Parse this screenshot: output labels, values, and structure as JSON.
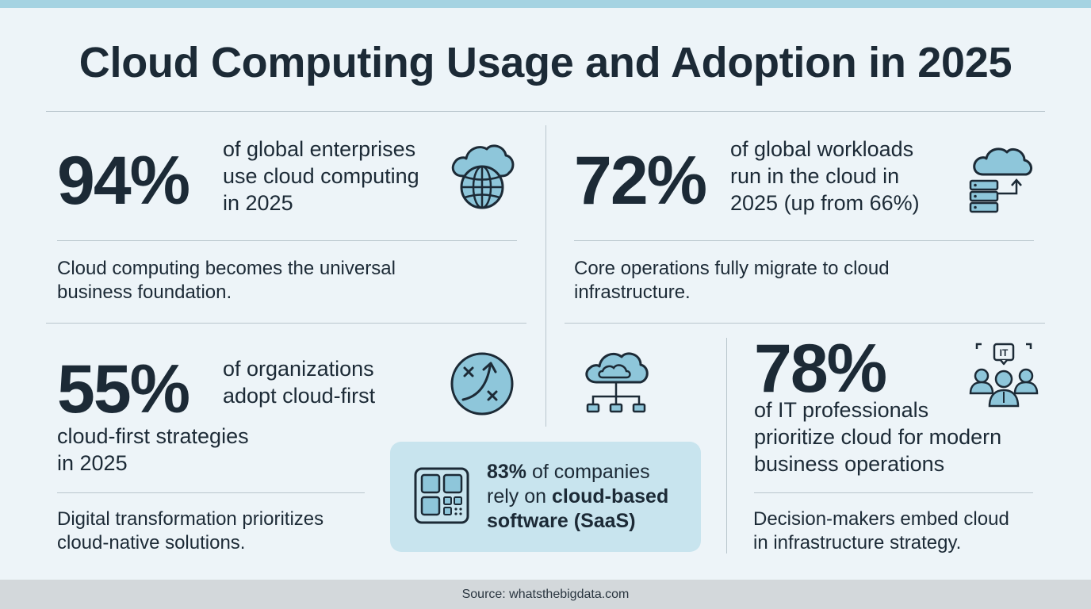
{
  "title": "Cloud Computing Usage and Adoption in 2025",
  "stats": {
    "enterprises": {
      "value": "94%",
      "text_lines": [
        "of global enterprises",
        "use cloud computing",
        "in 2025"
      ],
      "note_lines": [
        "Cloud computing becomes the universal",
        "business foundation."
      ],
      "icon": "cloud-globe-icon"
    },
    "workloads": {
      "value": "72%",
      "text_lines": [
        "of global workloads",
        "run in the cloud in",
        "2025 (up from 66%)"
      ],
      "note_lines": [
        "Core operations fully migrate to cloud",
        "infrastructure."
      ],
      "icon": "cloud-server-icon"
    },
    "cloud_first": {
      "value": "55%",
      "text_lines": [
        "of organizations",
        "adopt cloud-first"
      ],
      "text_lines_below": [
        "cloud-first strategies",
        "in 2025"
      ],
      "note_lines": [
        "Digital transformation prioritizes",
        "cloud-native solutions."
      ],
      "icon": "strategy-arrow-icon"
    },
    "it_pros": {
      "value": "78%",
      "text_lines": [
        "of IT professionals",
        "prioritize cloud for modern",
        "business operations"
      ],
      "note_lines": [
        "Decision-makers embed cloud",
        "in infrastructure strategy."
      ],
      "icon": "it-team-icon",
      "icon_label": "IT"
    }
  },
  "saas_callout": {
    "value": "83%",
    "text_1": " of companies",
    "text_2": "rely on ",
    "bold_2": "cloud-based",
    "bold_3": "software (SaaS)",
    "icon": "app-grid-icon"
  },
  "network_icon": "cloud-network-icon",
  "footer": "Source: whatsthebigdata.com",
  "colors": {
    "background": "#edf4f8",
    "accent_bar": "#a5d3e2",
    "text": "#1c2a36",
    "icon_fill": "#8ec6da",
    "callout_bg": "#c8e4ee",
    "footer_bg": "#d3d8db"
  }
}
